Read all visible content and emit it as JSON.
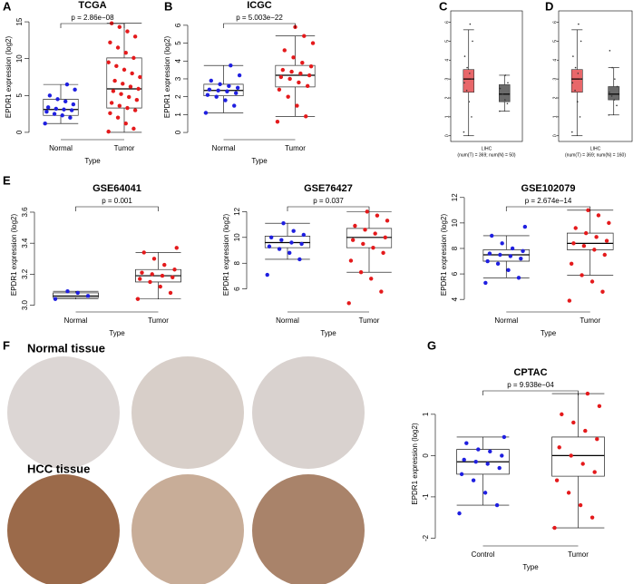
{
  "chart_data": [
    {
      "type": "box",
      "label": "A",
      "title": "TCGA",
      "ylabel": "EPDR1 expression (log2)",
      "xlabel": "Type",
      "categories": [
        "Normal",
        "Tumor"
      ],
      "ylim": [
        -0.5,
        15.5
      ],
      "yticks": [
        0,
        5,
        10,
        15
      ],
      "p_label": "p = 2.86e−08",
      "point_colors": [
        "#1f1fe0",
        "#e41a1c"
      ],
      "boxes": [
        {
          "lower": 1.2,
          "q1": 2.3,
          "median": 3.1,
          "q3": 4.5,
          "upper": 6.5
        },
        {
          "lower": 0,
          "q1": 3.3,
          "median": 5.9,
          "q3": 10.1,
          "upper": 14.8
        }
      ],
      "points": [
        [
          1.2,
          2.0,
          2.3,
          2.5,
          2.8,
          3.0,
          3.1,
          3.2,
          3.4,
          3.8,
          4.2,
          4.5,
          5.0,
          5.8,
          6.5
        ],
        [
          0.1,
          0.5,
          1.2,
          2.0,
          2.6,
          3.0,
          3.3,
          3.6,
          4.0,
          4.4,
          4.8,
          5.2,
          5.6,
          5.9,
          6.2,
          6.6,
          7.0,
          7.5,
          8.0,
          8.5,
          9.0,
          9.5,
          10.1,
          10.8,
          11.5,
          12.2,
          13.0,
          13.7,
          14.3,
          14.8
        ]
      ]
    },
    {
      "type": "box",
      "label": "B",
      "title": "ICGC",
      "ylabel": "EPDR1 expression (log2)",
      "xlabel": "Type",
      "categories": [
        "Normal",
        "Tumor"
      ],
      "ylim": [
        -0.2,
        6.4
      ],
      "yticks": [
        0,
        1,
        2,
        3,
        4,
        5,
        6
      ],
      "p_label": "p = 5.003e−22",
      "point_colors": [
        "#1f1fe0",
        "#e41a1c"
      ],
      "boxes": [
        {
          "lower": 1.1,
          "q1": 2.05,
          "median": 2.35,
          "q3": 2.7,
          "upper": 3.75
        },
        {
          "lower": 0.9,
          "q1": 2.55,
          "median": 3.2,
          "q3": 3.75,
          "upper": 5.4
        }
      ],
      "points": [
        [
          1.1,
          1.5,
          1.8,
          2.0,
          2.1,
          2.2,
          2.3,
          2.35,
          2.4,
          2.5,
          2.6,
          2.7,
          2.9,
          3.2,
          3.75
        ],
        [
          0.6,
          0.9,
          1.5,
          2.0,
          2.4,
          2.6,
          2.8,
          3.0,
          3.1,
          3.2,
          3.3,
          3.4,
          3.5,
          3.7,
          3.9,
          4.2,
          4.6,
          5.0,
          5.4,
          5.9
        ]
      ]
    },
    {
      "type": "box",
      "label": "C",
      "frame": true,
      "yticks": [
        0,
        1,
        2,
        3,
        4,
        5,
        6
      ],
      "ylim": [
        -0.3,
        6.6
      ],
      "note": "LIHC",
      "subnote": "(num(T) = 369; num(N) = 50)",
      "box_colors": [
        "#e8676a",
        "#6b6b6b"
      ],
      "point_colors": [
        "#333333",
        "#333333"
      ],
      "boxes": [
        {
          "lower": 0,
          "q1": 2.3,
          "median": 3.0,
          "q3": 3.5,
          "upper": 5.6
        },
        {
          "lower": 1.3,
          "q1": 1.8,
          "median": 2.2,
          "q3": 2.7,
          "upper": 3.2
        }
      ],
      "points": [
        [
          0.2,
          1.0,
          1.8,
          2.4,
          2.8,
          3.0,
          3.3,
          3.6,
          4.2,
          5.0,
          5.9
        ],
        [
          1.3,
          1.7,
          1.9,
          2.2,
          2.5,
          2.8,
          3.2
        ]
      ]
    },
    {
      "type": "box",
      "label": "D",
      "frame": true,
      "yticks": [
        0,
        1,
        2,
        3,
        4,
        5,
        6
      ],
      "ylim": [
        -0.3,
        6.6
      ],
      "note": "LIHC",
      "subnote": "(num(T) = 369; num(N) = 160)",
      "box_colors": [
        "#e8676a",
        "#6b6b6b"
      ],
      "point_colors": [
        "#333333",
        "#333333"
      ],
      "boxes": [
        {
          "lower": 0,
          "q1": 2.3,
          "median": 3.0,
          "q3": 3.5,
          "upper": 5.6
        },
        {
          "lower": 1.1,
          "q1": 1.9,
          "median": 2.2,
          "q3": 2.6,
          "upper": 3.6
        }
      ],
      "points": [
        [
          0.2,
          1.0,
          1.8,
          2.4,
          2.8,
          3.0,
          3.3,
          3.6,
          4.2,
          5.0,
          5.9
        ],
        [
          1.1,
          1.6,
          1.9,
          2.1,
          2.3,
          2.6,
          3.0,
          3.6,
          4.5
        ]
      ]
    },
    {
      "type": "box",
      "label": "E",
      "title": "GSE64041",
      "ylabel": "EPDR1 expression (log2)",
      "xlabel": "Type",
      "categories": [
        "Normal",
        "Tumor"
      ],
      "ylim": [
        2.98,
        3.67
      ],
      "yticks": [
        {
          "value": 3.0,
          "label": "3.0"
        },
        {
          "value": 3.2,
          "label": "3.2"
        },
        {
          "value": 3.4,
          "label": "3.4"
        },
        {
          "value": 3.6,
          "label": "3.6"
        }
      ],
      "p_label": "p = 0.001",
      "point_colors": [
        "#1f1fe0",
        "#e41a1c"
      ],
      "boxes": [
        {
          "lower": 3.04,
          "q1": 3.05,
          "median": 3.06,
          "q3": 3.08,
          "upper": 3.09
        },
        {
          "lower": 3.04,
          "q1": 3.15,
          "median": 3.19,
          "q3": 3.23,
          "upper": 3.34
        }
      ],
      "points": [
        [
          3.04,
          3.06,
          3.08,
          3.09
        ],
        [
          3.04,
          3.08,
          3.12,
          3.15,
          3.17,
          3.18,
          3.19,
          3.2,
          3.21,
          3.23,
          3.26,
          3.3,
          3.34,
          3.37
        ]
      ]
    },
    {
      "type": "box",
      "title": "GSE76427",
      "ylabel": "EPDR1 expression (log2)",
      "xlabel": "Type",
      "categories": [
        "Normal",
        "Tumor"
      ],
      "ylim": [
        4.5,
        12.8
      ],
      "yticks": [
        6,
        8,
        10,
        12
      ],
      "p_label": "p = 0.037",
      "point_colors": [
        "#1f1fe0",
        "#e41a1c"
      ],
      "boxes": [
        {
          "lower": 8.3,
          "q1": 9.2,
          "median": 9.6,
          "q3": 10.1,
          "upper": 11.1
        },
        {
          "lower": 7.3,
          "q1": 9.2,
          "median": 10.0,
          "q3": 10.7,
          "upper": 12.0
        }
      ],
      "points": [
        [
          7.1,
          8.3,
          8.8,
          9.1,
          9.3,
          9.5,
          9.6,
          9.8,
          10.0,
          10.2,
          10.5,
          11.1
        ],
        [
          4.9,
          5.8,
          6.8,
          7.3,
          8.2,
          8.8,
          9.2,
          9.5,
          9.8,
          10.0,
          10.3,
          10.6,
          10.9,
          11.3,
          11.7,
          12.0
        ]
      ]
    },
    {
      "type": "box",
      "title": "GSE102079",
      "ylabel": "EPDR1 expression (log2)",
      "xlabel": "Type",
      "categories": [
        "Normal",
        "Tumor"
      ],
      "ylim": [
        3.3,
        11.7
      ],
      "yticks": [
        4,
        6,
        8,
        10,
        12
      ],
      "p_label": "p = 2.674e−14",
      "point_colors": [
        "#1f1fe0",
        "#e41a1c"
      ],
      "boxes": [
        {
          "lower": 5.7,
          "q1": 7.0,
          "median": 7.5,
          "q3": 7.9,
          "upper": 9.0
        },
        {
          "lower": 5.9,
          "q1": 7.9,
          "median": 8.4,
          "q3": 9.2,
          "upper": 11.0
        }
      ],
      "points": [
        [
          5.3,
          5.7,
          6.3,
          6.8,
          7.0,
          7.2,
          7.4,
          7.5,
          7.6,
          7.8,
          8.0,
          8.4,
          9.0,
          9.7
        ],
        [
          3.9,
          4.6,
          5.4,
          5.9,
          6.8,
          7.5,
          7.9,
          8.2,
          8.4,
          8.6,
          8.9,
          9.2,
          9.6,
          10.0,
          10.6,
          11.0
        ]
      ]
    },
    {
      "type": "box",
      "label": "G",
      "title": "CPTAC",
      "ylabel": "EPDR1 expression (log2)",
      "xlabel": "Type",
      "categories": [
        "Control",
        "Tumor"
      ],
      "ylim": [
        -2.1,
        1.7
      ],
      "yticks": [
        -2,
        -1,
        0,
        1
      ],
      "p_label": "p = 9.938e−04",
      "point_colors": [
        "#1f1fe0",
        "#e41a1c"
      ],
      "boxes": [
        {
          "lower": -1.2,
          "q1": -0.45,
          "median": -0.15,
          "q3": 0.15,
          "upper": 0.45
        },
        {
          "lower": -1.75,
          "q1": -0.5,
          "median": 0,
          "q3": 0.45,
          "upper": 1.5
        }
      ],
      "points": [
        [
          -1.4,
          -1.2,
          -0.9,
          -0.6,
          -0.45,
          -0.3,
          -0.2,
          -0.15,
          -0.1,
          0,
          0.1,
          0.15,
          0.3,
          0.45
        ],
        [
          -1.75,
          -1.5,
          -1.2,
          -0.9,
          -0.6,
          -0.4,
          -0.2,
          0,
          0.2,
          0.4,
          0.6,
          0.8,
          1.0,
          1.2,
          1.5
        ]
      ]
    }
  ],
  "figure_f": {
    "label": "F",
    "rows": [
      "Normal tissue",
      "HCC tissue"
    ]
  }
}
